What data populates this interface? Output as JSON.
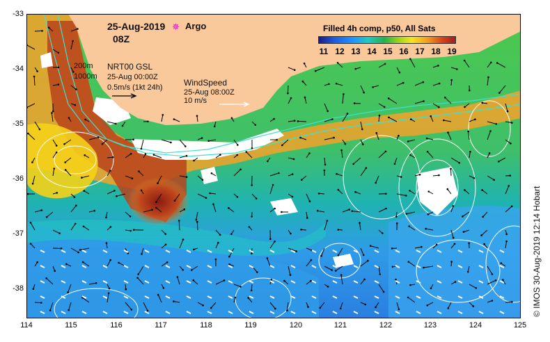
{
  "map": {
    "date": "25-Aug-2019",
    "hour": "08Z",
    "argo_label": "Argo",
    "argo_marker": "✵",
    "contour_200": "200m",
    "contour_1000": "1000m",
    "current_title": "NRT00 GSL",
    "current_date": "25-Aug 00:00Z",
    "current_scale": "0.5m/s (1kt 24h)",
    "wind_title": "WindSpeed",
    "wind_date": "25-Aug 08:00Z",
    "wind_scale": "10 m/s",
    "colorbar_title": "Filled 4h comp, p50, All Sats",
    "colorbar_ticks": [
      "11",
      "12",
      "13",
      "14",
      "15",
      "16",
      "17",
      "18",
      "19"
    ],
    "credit": "© IMOS 30-Aug-2019 12:14 Hobart",
    "lat_labels": [
      "-33",
      "-34",
      "-35",
      "-36",
      "-37",
      "-38"
    ],
    "lon_labels": [
      "114",
      "115",
      "116",
      "117",
      "118",
      "119",
      "120",
      "121",
      "122",
      "123",
      "124",
      "125"
    ],
    "colors": {
      "land": "#f9c89b",
      "sst_11": "#1a1a8c",
      "sst_13": "#1e90ff",
      "sst_15": "#22b14c",
      "sst_17": "#f5e61a",
      "sst_19": "#a0201b",
      "argo": "#e000e0",
      "contour": "#40e0d0"
    }
  }
}
